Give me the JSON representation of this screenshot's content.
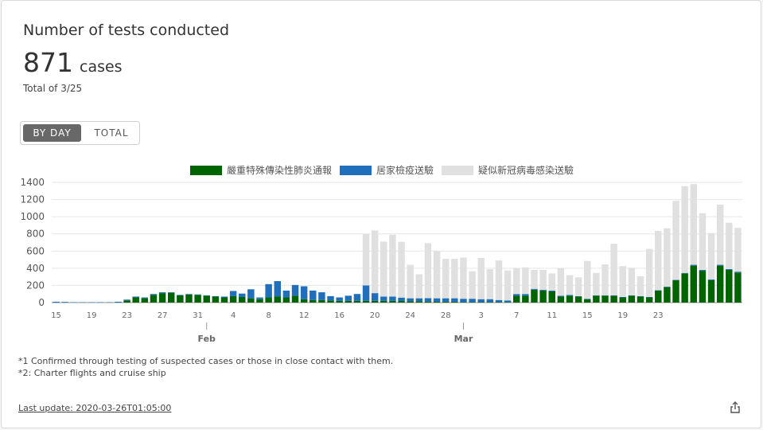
{
  "card": {
    "title": "Number of tests conducted",
    "value": "871",
    "unit": "cases",
    "total_label": "Total of 3/25"
  },
  "toggle": {
    "by_day": "BY DAY",
    "total": "TOTAL",
    "active": "by_day"
  },
  "notes": {
    "note1": "*1 Confirmed through testing of suspected cases or those in close contact with them.",
    "note2": "*2: Charter flights and cruise ship"
  },
  "footer": {
    "last_update": "Last update: 2020-03-26T01:05:00",
    "share_icon": "share-icon"
  },
  "chart_data": {
    "type": "bar",
    "stacked": true,
    "ylim": [
      0,
      1400
    ],
    "yticks": [
      0,
      200,
      400,
      600,
      800,
      1000,
      1200,
      1400
    ],
    "x_tick_labels": [
      "15",
      "19",
      "23",
      "27",
      "31",
      "4",
      "8",
      "12",
      "16",
      "20",
      "24",
      "28",
      "3",
      "7",
      "11",
      "15",
      "19",
      "23"
    ],
    "month_labels": [
      "Feb",
      "Mar"
    ],
    "grid": true,
    "legend_position": "top",
    "series": [
      {
        "name": "嚴重特殊傳染性肺炎通報",
        "color": "#006400",
        "values": [
          0,
          0,
          0,
          0,
          0,
          0,
          0,
          0,
          25,
          60,
          50,
          90,
          110,
          115,
          85,
          95,
          90,
          80,
          70,
          60,
          75,
          65,
          50,
          40,
          60,
          70,
          60,
          80,
          40,
          30,
          30,
          25,
          20,
          20,
          20,
          20,
          20,
          20,
          20,
          18,
          15,
          15,
          12,
          10,
          10,
          10,
          5,
          5,
          5,
          5,
          5,
          5,
          80,
          80,
          150,
          140,
          130,
          70,
          80,
          70,
          40,
          80,
          80,
          80,
          60,
          80,
          70,
          60,
          140,
          180,
          260,
          340,
          430,
          370,
          260,
          430,
          380,
          350
        ]
      },
      {
        "name": "居家檢疫送驗",
        "color": "#1f6fbd",
        "values": [
          10,
          8,
          5,
          5,
          5,
          5,
          5,
          10,
          10,
          10,
          10,
          10,
          10,
          5,
          5,
          5,
          5,
          5,
          5,
          10,
          60,
          40,
          105,
          20,
          155,
          180,
          80,
          125,
          150,
          110,
          90,
          50,
          40,
          60,
          80,
          180,
          90,
          50,
          50,
          40,
          35,
          35,
          40,
          40,
          40,
          40,
          40,
          40,
          35,
          35,
          25,
          20,
          20,
          20,
          10,
          10,
          10,
          10,
          10,
          5,
          5,
          5,
          5,
          5,
          5,
          5,
          5,
          5,
          5,
          5,
          5,
          5,
          10,
          10,
          10,
          10,
          10,
          10
        ]
      },
      {
        "name": "疑似新冠病毒感染送驗",
        "color": "#e0e0e0",
        "values": [
          0,
          0,
          0,
          0,
          0,
          0,
          0,
          0,
          0,
          0,
          0,
          0,
          0,
          0,
          0,
          0,
          0,
          0,
          0,
          0,
          0,
          0,
          0,
          0,
          0,
          0,
          0,
          0,
          0,
          0,
          0,
          0,
          0,
          0,
          0,
          600,
          730,
          640,
          720,
          650,
          390,
          280,
          640,
          550,
          460,
          460,
          480,
          320,
          480,
          350,
          460,
          350,
          300,
          310,
          220,
          230,
          200,
          320,
          230,
          220,
          440,
          260,
          360,
          600,
          360,
          320,
          230,
          560,
          690,
          680,
          920,
          1010,
          940,
          660,
          540,
          700,
          540,
          510
        ]
      }
    ]
  }
}
